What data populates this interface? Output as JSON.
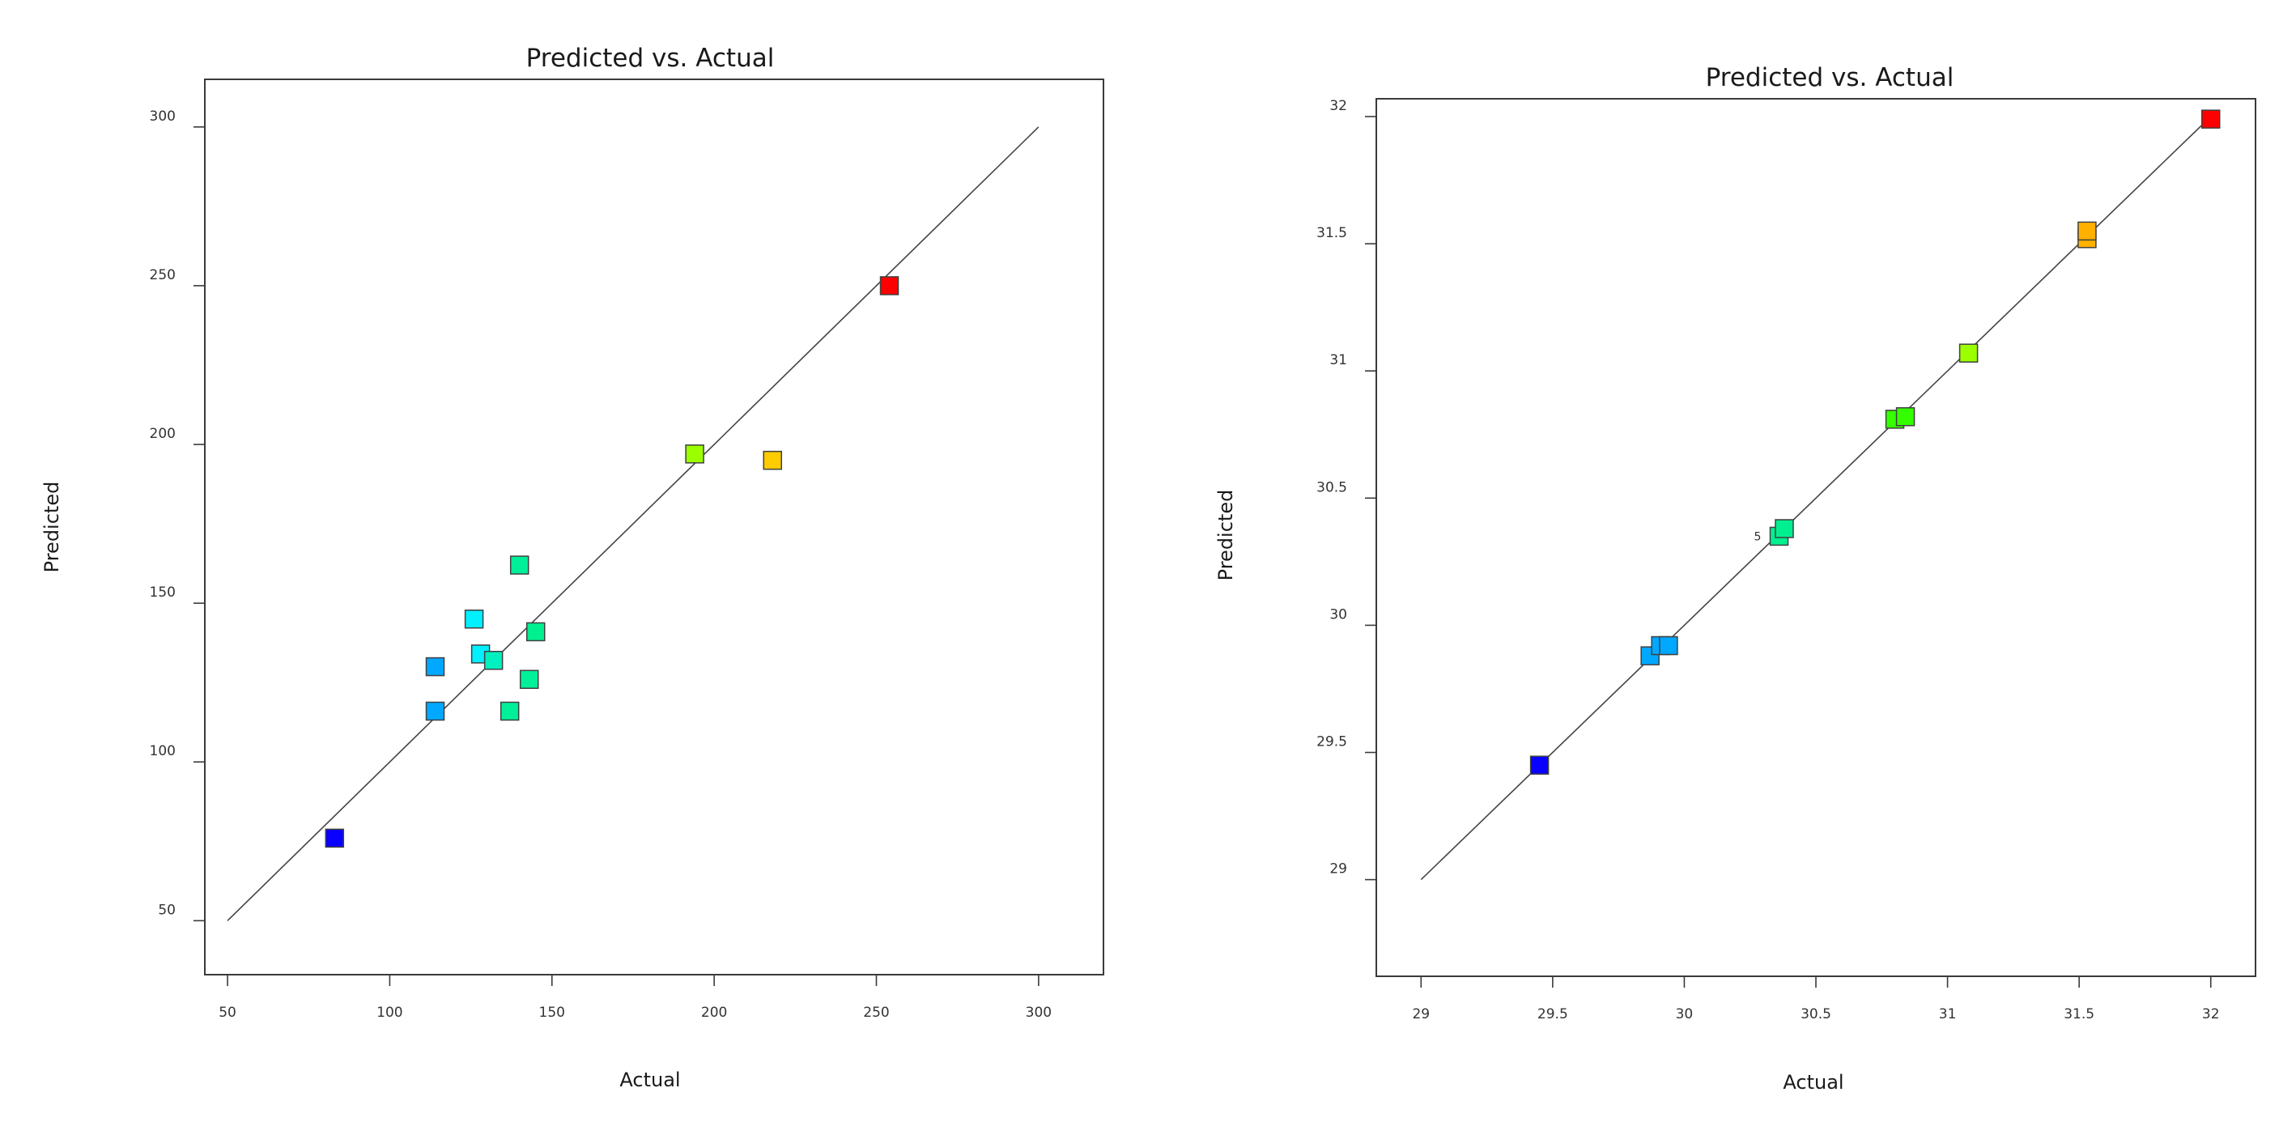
{
  "chart_data": [
    {
      "type": "scatter",
      "title": "Predicted vs. Actual",
      "xlabel": "Actual",
      "ylabel": "Predicted",
      "xlim": [
        43,
        320
      ],
      "ylim": [
        33,
        315
      ],
      "xticks": [
        "50",
        "100",
        "150",
        "200",
        "250",
        "300"
      ],
      "yticks": [
        "50",
        "100",
        "150",
        "200",
        "250",
        "300"
      ],
      "line": [
        [
          50,
          50
        ],
        [
          300,
          300
        ]
      ],
      "points": [
        {
          "x": 83,
          "y": 76,
          "color": "#0a00ff"
        },
        {
          "x": 114,
          "y": 130,
          "color": "#00a8ff"
        },
        {
          "x": 114,
          "y": 116,
          "color": "#00a8ff"
        },
        {
          "x": 126,
          "y": 145,
          "color": "#00f0ff"
        },
        {
          "x": 128,
          "y": 134,
          "color": "#00f0ff"
        },
        {
          "x": 132,
          "y": 132,
          "color": "#00f0c0"
        },
        {
          "x": 140,
          "y": 162,
          "color": "#00f09a"
        },
        {
          "x": 143,
          "y": 126,
          "color": "#00f09a"
        },
        {
          "x": 137,
          "y": 116,
          "color": "#00f09a"
        },
        {
          "x": 145,
          "y": 141,
          "color": "#00f090"
        },
        {
          "x": 194,
          "y": 197,
          "color": "#9cff00"
        },
        {
          "x": 218,
          "y": 195,
          "color": "#ffcc00"
        },
        {
          "x": 254,
          "y": 250,
          "color": "#ff0000"
        }
      ]
    },
    {
      "type": "scatter",
      "title": "Predicted vs. Actual",
      "xlabel": "Actual",
      "ylabel": "Predicted",
      "xlim": [
        28.83,
        32.17
      ],
      "ylim": [
        28.62,
        32.07
      ],
      "xticks": [
        "29",
        "29.5",
        "30",
        "30.5",
        "31",
        "31.5",
        "32"
      ],
      "yticks": [
        "29",
        "29.5",
        "30",
        "30.5",
        "31",
        "31.5",
        "32"
      ],
      "line": [
        [
          29,
          29
        ],
        [
          32,
          32
        ]
      ],
      "annotation": "5",
      "points": [
        {
          "x": 29.45,
          "y": 29.45,
          "color": "#0a00ff"
        },
        {
          "x": 29.87,
          "y": 29.88,
          "color": "#00a8ff"
        },
        {
          "x": 29.91,
          "y": 29.92,
          "color": "#00a8ff"
        },
        {
          "x": 29.94,
          "y": 29.92,
          "color": "#00a8ff"
        },
        {
          "x": 30.36,
          "y": 30.35,
          "color": "#00f090"
        },
        {
          "x": 30.38,
          "y": 30.38,
          "color": "#00f090"
        },
        {
          "x": 30.8,
          "y": 30.81,
          "color": "#33ff00"
        },
        {
          "x": 30.84,
          "y": 30.82,
          "color": "#33ff00"
        },
        {
          "x": 31.08,
          "y": 31.07,
          "color": "#9cff00"
        },
        {
          "x": 31.53,
          "y": 31.52,
          "color": "#ffb000"
        },
        {
          "x": 31.53,
          "y": 31.55,
          "color": "#ffb000"
        },
        {
          "x": 32.0,
          "y": 31.99,
          "color": "#ff0000"
        }
      ]
    }
  ]
}
